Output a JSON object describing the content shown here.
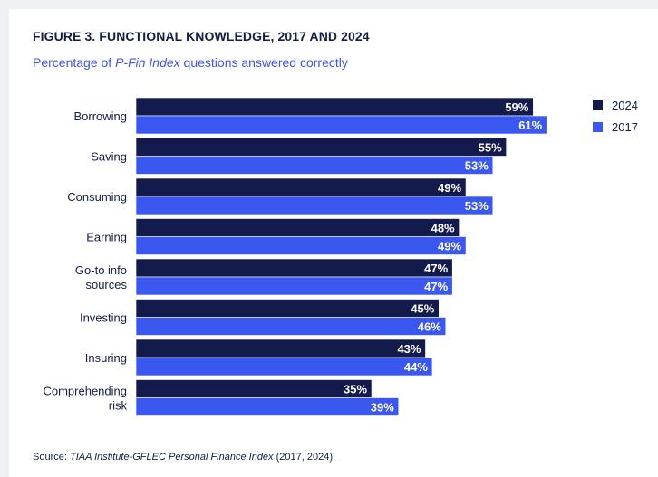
{
  "title": "FIGURE 3. FUNCTIONAL KNOWLEDGE, 2017 AND 2024",
  "subtitle_pre": "Percentage of ",
  "subtitle_em": "P-Fin Index",
  "subtitle_post": " questions answered correctly",
  "source_pre": "Source: ",
  "source_em": "TIAA Institute-GFLEC Personal Finance Index",
  "source_post": " (2017, 2024).",
  "colors": {
    "series_2024": "#131a4c",
    "series_2017": "#3a57f0",
    "label_text": "#ffffff",
    "axis_text": "#141d44"
  },
  "chart_data": {
    "type": "bar",
    "orientation": "horizontal",
    "categories": [
      "Borrowing",
      "Saving",
      "Consuming",
      "Earning",
      "Go-to info\nsources",
      "Investing",
      "Insuring",
      "Comprehending\nrisk"
    ],
    "series": [
      {
        "name": "2024",
        "values": [
          59,
          55,
          49,
          48,
          47,
          45,
          43,
          35
        ],
        "labels": [
          "59%",
          "55%",
          "49%",
          "48%",
          "47%",
          "45%",
          "43%",
          "35%"
        ]
      },
      {
        "name": "2017",
        "values": [
          61,
          53,
          53,
          49,
          47,
          46,
          44,
          39
        ],
        "labels": [
          "61%",
          "53%",
          "53%",
          "49%",
          "47%",
          "46%",
          "44%",
          "39%"
        ]
      }
    ],
    "legend_position": "top-right",
    "grid": false
  }
}
